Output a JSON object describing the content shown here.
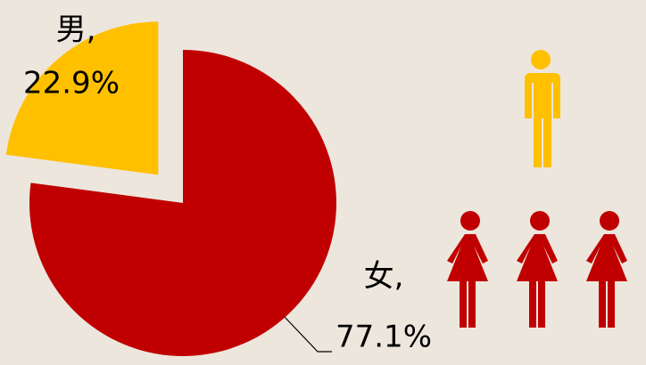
{
  "chart_data": {
    "type": "pie",
    "categories": [
      "男,",
      "女,"
    ],
    "values": [
      22.9,
      77.1
    ],
    "value_labels": [
      "22.9%",
      "77.1%"
    ],
    "colors": [
      "#ffc000",
      "#c00000"
    ]
  }
}
